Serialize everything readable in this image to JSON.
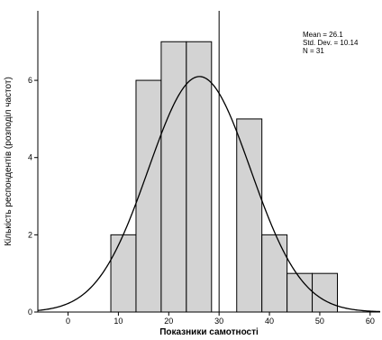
{
  "chart_data": {
    "type": "bar",
    "bins": [
      {
        "start": 8.5,
        "end": 13.5,
        "count": 2
      },
      {
        "start": 13.5,
        "end": 18.5,
        "count": 6
      },
      {
        "start": 18.5,
        "end": 23.5,
        "count": 7
      },
      {
        "start": 23.5,
        "end": 28.5,
        "count": 7
      },
      {
        "start": 33.5,
        "end": 38.5,
        "count": 5
      },
      {
        "start": 38.5,
        "end": 43.5,
        "count": 2
      },
      {
        "start": 43.5,
        "end": 48.5,
        "count": 1
      },
      {
        "start": 48.5,
        "end": 53.5,
        "count": 1
      }
    ],
    "normal_curve": {
      "mean": 26.1,
      "sd": 10.14,
      "n": 31,
      "bin_width": 5
    },
    "reference_line_x": 30,
    "xlabel": "Показники самотності",
    "ylabel": "Кількість респондентів (розподіл частот)",
    "xlim": [
      -6,
      62
    ],
    "ylim": [
      0,
      7.8
    ],
    "xticks": [
      "0",
      "10",
      "20",
      "30",
      "40",
      "50",
      "60"
    ],
    "yticks": [
      "0",
      "2",
      "4",
      "6"
    ],
    "stats": {
      "mean": "Mean = 26.1",
      "sd": "Std. Dev. = 10.14",
      "n": "N = 31"
    },
    "colors": {
      "bar_fill": "#d3d3d3",
      "stroke": "#000000"
    }
  }
}
